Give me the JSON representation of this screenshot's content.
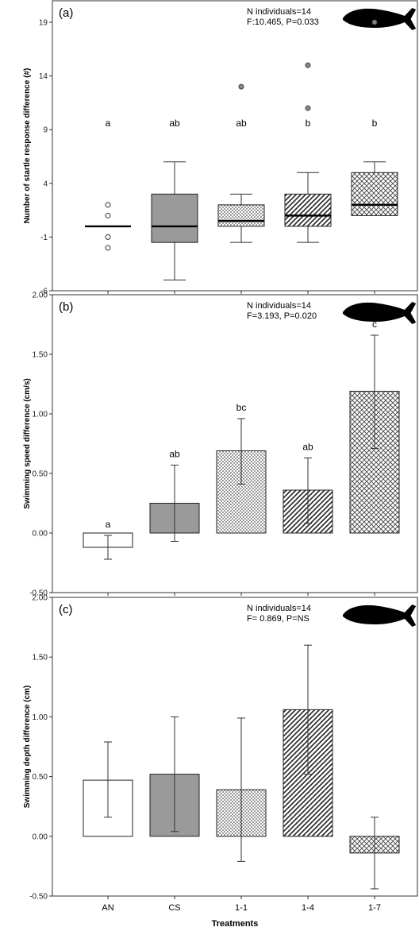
{
  "figure": {
    "xlabel": "Treatments"
  },
  "chart_data": [
    {
      "type": "box",
      "panel_label": "(a)",
      "annotation_lines": [
        "N individuals=14",
        "F:10.465, P=0.033"
      ],
      "ylabel": "Number of startle response difference (#)",
      "ylim": [
        -6,
        21
      ],
      "yticks": [
        "-6",
        "-1",
        "4",
        "9",
        "14",
        "19"
      ],
      "categories": [
        "AN",
        "CS",
        "1-1",
        "1-4",
        "1-7"
      ],
      "patterns": [
        "white",
        "gray",
        "dots",
        "diag",
        "cross"
      ],
      "boxes": [
        {
          "min": 0,
          "q1": 0,
          "median": 0,
          "q3": 0,
          "max": 0,
          "outliers_open": [
            2,
            1,
            -1,
            -2
          ],
          "outliers_filled": []
        },
        {
          "min": -5,
          "q1": -1.5,
          "median": 0,
          "q3": 3,
          "max": 6,
          "outliers_open": [],
          "outliers_filled": []
        },
        {
          "min": -1.5,
          "q1": 0,
          "median": 0.5,
          "q3": 2,
          "max": 3,
          "outliers_open": [],
          "outliers_filled": [
            13
          ]
        },
        {
          "min": -1.5,
          "q1": 0,
          "median": 1,
          "q3": 3,
          "max": 5,
          "outliers_open": [],
          "outliers_filled": [
            11,
            15
          ]
        },
        {
          "min": 1,
          "q1": 1,
          "median": 2,
          "q3": 5,
          "max": 6,
          "outliers_open": [],
          "outliers_filled": [
            19
          ]
        }
      ],
      "letters": [
        "a",
        "ab",
        "ab",
        "b",
        "b"
      ]
    },
    {
      "type": "bar",
      "panel_label": "(b)",
      "annotation_lines": [
        "N individuals=14",
        "F=3.193, P=0.020"
      ],
      "ylabel": "Swimming speed difference (cm/s)",
      "ylim": [
        -0.5,
        2.0
      ],
      "yticks": [
        "-0.50",
        "0.00",
        "0.50",
        "1.00",
        "1.50",
        "2.00"
      ],
      "categories": [
        "AN",
        "CS",
        "1-1",
        "1-4",
        "1-7"
      ],
      "patterns": [
        "white",
        "gray",
        "dots",
        "diag",
        "cross"
      ],
      "values": [
        -0.12,
        0.25,
        0.69,
        0.36,
        1.19
      ],
      "error_low": [
        -0.22,
        -0.07,
        0.41,
        0.08,
        0.71
      ],
      "error_high": [
        -0.02,
        0.57,
        0.96,
        0.63,
        1.66
      ],
      "letters": [
        "a",
        "ab",
        "bc",
        "ab",
        "c"
      ]
    },
    {
      "type": "bar",
      "panel_label": "(c)",
      "annotation_lines": [
        "N individuals=14",
        "F= 0.869, P=NS"
      ],
      "ylabel": "Swimming depth difference (cm)",
      "ylim": [
        -0.5,
        2.0
      ],
      "yticks": [
        "-0.50",
        "0.00",
        "0.50",
        "1.00",
        "1.50",
        "2.00"
      ],
      "categories": [
        "AN",
        "CS",
        "1-1",
        "1-4",
        "1-7"
      ],
      "patterns": [
        "white",
        "gray",
        "dots",
        "diag",
        "cross"
      ],
      "values": [
        0.47,
        0.52,
        0.39,
        1.06,
        -0.14
      ],
      "error_low": [
        0.16,
        0.04,
        -0.21,
        0.52,
        -0.44
      ],
      "error_high": [
        0.79,
        1.0,
        0.99,
        1.6,
        0.16
      ],
      "letters": []
    }
  ],
  "colors": {
    "gray_fill": "#9a9a9a",
    "pattern_ink": "#555555",
    "fish": "#000000",
    "axis": "#333333"
  },
  "icons": [
    "fish-silhouette-icon"
  ]
}
